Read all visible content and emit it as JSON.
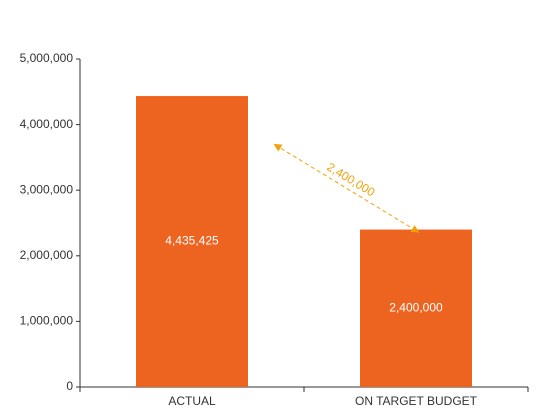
{
  "chart_data": {
    "type": "bar",
    "categories": [
      "ACTUAL",
      "ON TARGET BUDGET"
    ],
    "values": [
      4435425,
      2400000
    ],
    "value_labels": [
      "4,435,425",
      "2,400,000"
    ],
    "color": "#ed6421",
    "ylim": [
      0,
      5000000
    ],
    "yticks": [
      0,
      {
        "value": 1000000,
        "label": "1,000,000"
      },
      {
        "value": 2000000,
        "label": "2,000,000"
      },
      {
        "value": 3000000,
        "label": "3,000,000"
      },
      {
        "value": 4000000,
        "label": "4,000,000"
      },
      {
        "value": 5000000,
        "label": "5,000,000"
      }
    ],
    "annotation": {
      "text": "2,400,000",
      "color": "#f0a30a"
    }
  }
}
